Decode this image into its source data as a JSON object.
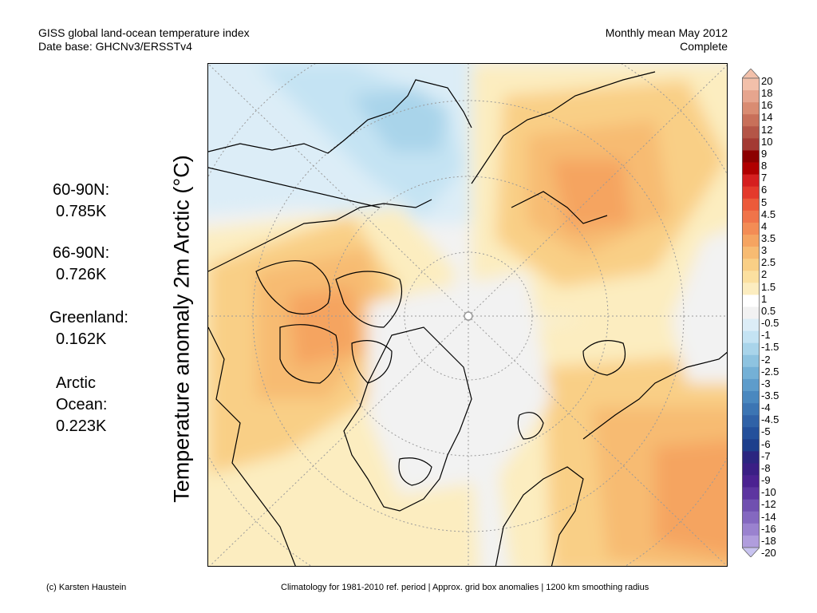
{
  "header": {
    "title": "GISS global land-ocean temperature index",
    "database": "Date base: GHCNv3/ERSSTv4",
    "period": "Monthly mean May 2012",
    "status": "Complete"
  },
  "y_axis_label": "Temperature anomaly 2m Arctic (°C)",
  "stats": [
    {
      "label": "60-90N:",
      "value": "0.785K"
    },
    {
      "label": "66-90N:",
      "value": "0.726K"
    },
    {
      "label": "Greenland:",
      "value": "0.162K"
    },
    {
      "label": "Arctic",
      "label2": "Ocean:",
      "value": "0.223K"
    }
  ],
  "legend": {
    "labels": [
      "20",
      "18",
      "16",
      "14",
      "12",
      "10",
      "9",
      "8",
      "7",
      "6",
      "5",
      "4.5",
      "4",
      "3.5",
      "3",
      "2.5",
      "2",
      "1.5",
      "1",
      "0.5",
      "-0.5",
      "-1",
      "-1.5",
      "-2",
      "-2.5",
      "-3",
      "-3.5",
      "-4",
      "-4.5",
      "-5",
      "-6",
      "-7",
      "-8",
      "-9",
      "-10",
      "-12",
      "-14",
      "-16",
      "-18",
      "-20"
    ],
    "colors": [
      "#f2c0aa",
      "#e6a58e",
      "#d98c72",
      "#c8705a",
      "#b45547",
      "#a33a33",
      "#8c0000",
      "#b00000",
      "#d51f1f",
      "#e43a2c",
      "#ec5a3a",
      "#f0744a",
      "#f38c55",
      "#f5a461",
      "#f7bb72",
      "#f9cf86",
      "#fbe0a0",
      "#fcedc0",
      "#ffffff",
      "#f2f2f2",
      "#dcedf7",
      "#c4e3f3",
      "#a9d4ea",
      "#8ec3e0",
      "#74b0d6",
      "#5e9ccb",
      "#4a88bf",
      "#3c75b3",
      "#3062a7",
      "#24509b",
      "#1d3f8c",
      "#2b2680",
      "#3a1f85",
      "#4b2291",
      "#5d35a0",
      "#7050b0",
      "#8468c0",
      "#9a82cf",
      "#b09ddd"
    ],
    "arrow_top": "#f2c0aa",
    "arrow_bottom": "#c8c3f0"
  },
  "footer": {
    "credit": "(c) Karsten Haustein",
    "note": "Climatology for 1981-2010 ref. period | Approx. grid box anomalies | 1200 km smoothing radius"
  }
}
